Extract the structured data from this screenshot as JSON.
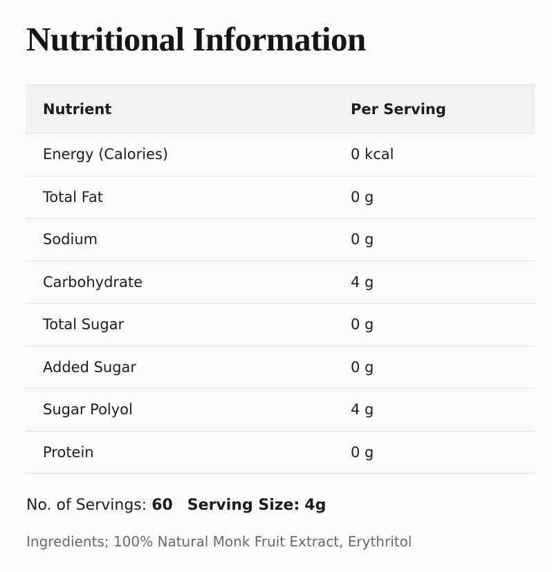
{
  "title": "Nutritional Information",
  "table": {
    "header": [
      "Nutrient",
      "Per Serving"
    ],
    "rows": [
      [
        "Energy (Calories)",
        "0 kcal"
      ],
      [
        "Total Fat",
        "0 g"
      ],
      [
        "Sodium",
        "0 g"
      ],
      [
        "Carbohydrate",
        "4 g"
      ],
      [
        "Total Sugar",
        "0 g"
      ],
      [
        "Added Sugar",
        "0 g"
      ],
      [
        "Sugar Polyol",
        "4 g"
      ],
      [
        "Protein",
        "0 g"
      ]
    ]
  },
  "servings": {
    "count_label": "No. of Servings:",
    "count": "60",
    "size_label": "Serving Size:",
    "size": "4g"
  },
  "ingredients": "Ingredients; 100% Natural Monk Fruit Extract, Erythritol"
}
